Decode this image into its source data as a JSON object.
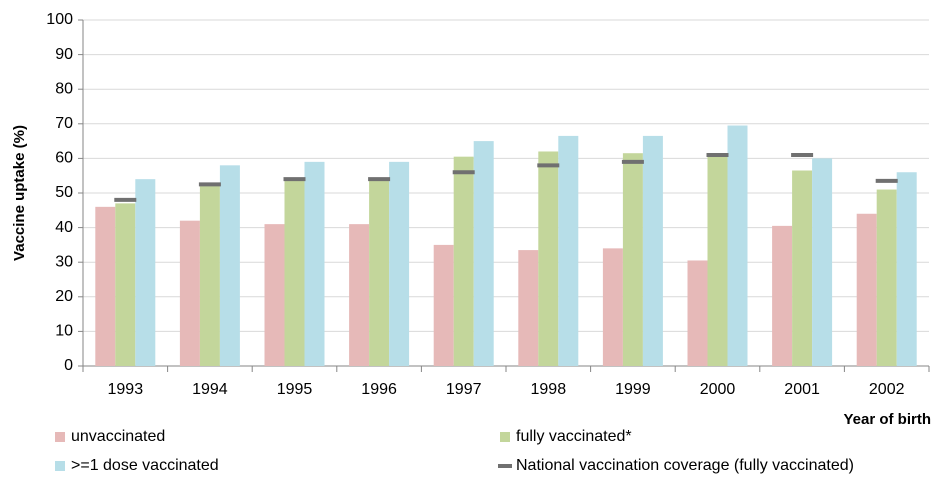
{
  "chart_data": {
    "type": "bar",
    "y_label": "Vaccine uptake (%)",
    "x_label": "Year of birth",
    "categories": [
      "1993",
      "1994",
      "1995",
      "1996",
      "1997",
      "1998",
      "1999",
      "2000",
      "2001",
      "2002"
    ],
    "series": [
      {
        "name": "unvaccinated",
        "color": "#e6b9b8",
        "values": [
          46,
          42,
          41,
          41,
          35,
          33.5,
          34,
          30.5,
          40.5,
          44
        ]
      },
      {
        "name": "fully vaccinated*",
        "color": "#c3d69b",
        "values": [
          47,
          52,
          54,
          54,
          60.5,
          62,
          61.5,
          61,
          56.5,
          51
        ]
      },
      {
        "name": ">=1 dose vaccinated",
        "color": "#b7dee8",
        "values": [
          54,
          58,
          59,
          59,
          65,
          66.5,
          66.5,
          69.5,
          60,
          56
        ]
      },
      {
        "name": "National vaccination coverage (fully vaccinated)",
        "color": "#707070",
        "style": "marker",
        "values": [
          48,
          52.5,
          54,
          54,
          56,
          58,
          59,
          61,
          61,
          53.5
        ]
      }
    ],
    "ylim": [
      0,
      100
    ],
    "yticks": [
      0,
      10,
      20,
      30,
      40,
      50,
      60,
      70,
      80,
      90,
      100
    ],
    "grid": true
  }
}
